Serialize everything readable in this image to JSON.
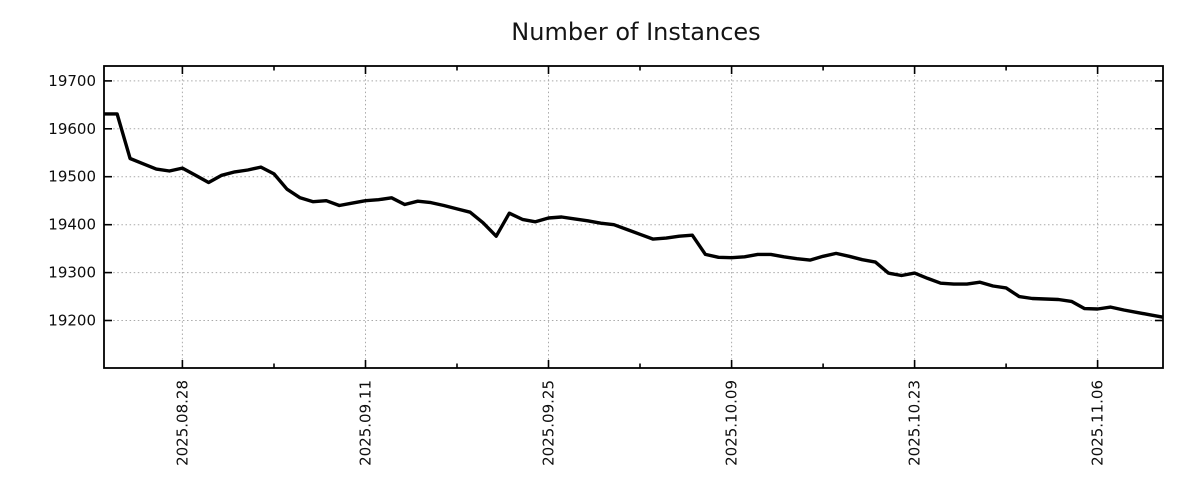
{
  "title": "Number of Instances",
  "chart_data": {
    "type": "line",
    "title": "Number of Instances",
    "xlabel": "",
    "ylabel": "",
    "grid": true,
    "legend": "none",
    "line_color": "#000000",
    "line_width": 3.4,
    "grid_color": "#a9a9a9",
    "background": "#ffffff",
    "x_index_range": [
      0,
      81
    ],
    "ylim": [
      19101,
      19731
    ],
    "y_ticks": [
      19200,
      19300,
      19400,
      19500,
      19600,
      19700
    ],
    "x_major_ticks": [
      {
        "index": 6,
        "label": "2025.08.28"
      },
      {
        "index": 20,
        "label": "2025.09.11"
      },
      {
        "index": 34,
        "label": "2025.09.25"
      },
      {
        "index": 48,
        "label": "2025.10.09"
      },
      {
        "index": 62,
        "label": "2025.10.23"
      },
      {
        "index": 76,
        "label": "2025.11.06"
      }
    ],
    "x_minor_tick_indices": [
      13,
      27,
      41,
      55,
      69
    ],
    "series": [
      {
        "name": "Number of Instances",
        "values": [
          19631,
          19631,
          19538,
          19527,
          19516,
          19512,
          19518,
          19503,
          19488,
          19503,
          19510,
          19514,
          19520,
          19506,
          19474,
          19456,
          19448,
          19450,
          19440,
          19445,
          19450,
          19452,
          19456,
          19442,
          19449,
          19446,
          19440,
          19433,
          19426,
          19404,
          19376,
          19424,
          19411,
          19406,
          19414,
          19416,
          19412,
          19408,
          19403,
          19400,
          19390,
          19380,
          19370,
          19372,
          19376,
          19378,
          19338,
          19332,
          19331,
          19333,
          19338,
          19338,
          19333,
          19329,
          19326,
          19334,
          19340,
          19334,
          19327,
          19322,
          19299,
          19294,
          19299,
          19288,
          19278,
          19276,
          19276,
          19280,
          19272,
          19268,
          19250,
          19246,
          19245,
          19244,
          19240,
          19225,
          19224,
          19228,
          19222,
          19217,
          19212,
          19207
        ]
      }
    ]
  }
}
